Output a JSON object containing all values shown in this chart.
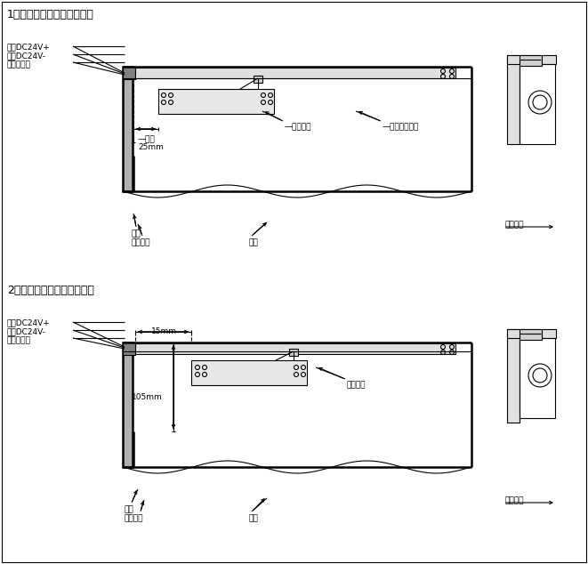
{
  "title1": "1、联动闭门器于推门面安装",
  "title2": "2、联动闭门器于拉门面安装",
  "label_red": "红线DC24V+",
  "label_black": "黑线DC24V-",
  "label_signal": "门状态信号",
  "label_align": "—对齐",
  "label_25mm": "25mm",
  "label_15mm": "15mm",
  "label_105mm": "105mm",
  "label_level1": "—保持水平",
  "label_level2": "保持水平",
  "label_door_frame_bottom": "—门框下边对齐",
  "label_door_frame1": "门框",
  "label_hinge1": "钸链一侧",
  "label_door_leaf1": "门扇",
  "label_door_frame2": "门框",
  "label_hinge2": "钸链一侧",
  "label_door_leaf2": "门扇",
  "label_open_dir1": "开门方向",
  "label_open_dir2": "开门方向",
  "line_color": "#000000",
  "bg_color": "#ffffff",
  "fig_width": 6.61,
  "fig_height": 6.34
}
